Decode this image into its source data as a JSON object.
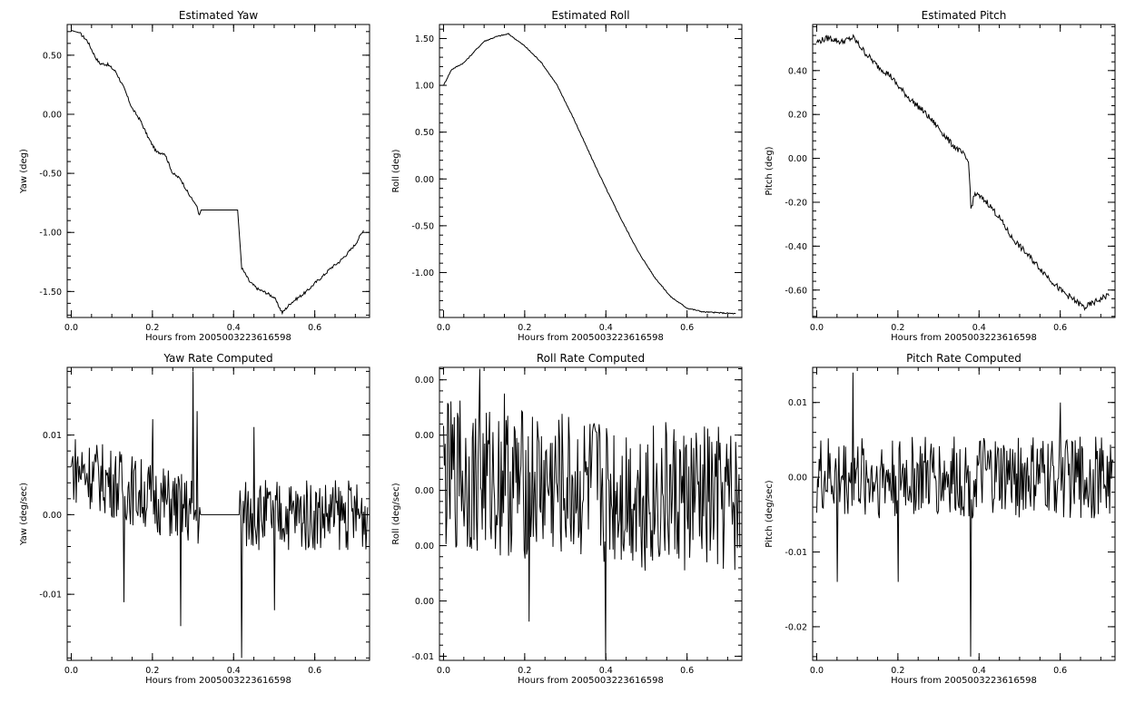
{
  "figure": {
    "background": "#ffffff",
    "line_color": "#000000"
  },
  "chart_data": [
    {
      "type": "line",
      "title": "Estimated Yaw",
      "xlabel": "Hours from 2005003223616598",
      "ylabel": "Yaw (deg)",
      "xlim": [
        -0.01,
        0.735
      ],
      "ylim": [
        -1.72,
        0.76
      ],
      "xticks": [
        0.0,
        0.2,
        0.4,
        0.6
      ],
      "xtick_labels": [
        "0.0",
        "0.2",
        "0.4",
        "0.6"
      ],
      "yticks": [
        0.5,
        0.0,
        -0.5,
        -1.0,
        -1.5
      ],
      "ytick_labels": [
        "0.50",
        "0.00",
        "-0.50",
        "-1.00",
        "-1.50"
      ],
      "grid": false,
      "series": [
        {
          "points": [
            [
              0.0,
              0.71
            ],
            [
              0.02,
              0.69
            ],
            [
              0.04,
              0.62
            ],
            [
              0.06,
              0.48
            ],
            [
              0.07,
              0.43
            ],
            [
              0.09,
              0.42
            ],
            [
              0.11,
              0.36
            ],
            [
              0.13,
              0.22
            ],
            [
              0.15,
              0.05
            ],
            [
              0.17,
              -0.05
            ],
            [
              0.19,
              -0.2
            ],
            [
              0.21,
              -0.32
            ],
            [
              0.23,
              -0.33
            ],
            [
              0.25,
              -0.5
            ],
            [
              0.27,
              -0.55
            ],
            [
              0.29,
              -0.68
            ],
            [
              0.31,
              -0.78
            ],
            [
              0.315,
              -0.86
            ],
            [
              0.32,
              -0.81
            ],
            [
              0.41,
              -0.81
            ],
            [
              0.42,
              -1.3
            ],
            [
              0.44,
              -1.42
            ],
            [
              0.46,
              -1.48
            ],
            [
              0.48,
              -1.51
            ],
            [
              0.5,
              -1.55
            ],
            [
              0.52,
              -1.68
            ],
            [
              0.54,
              -1.6
            ],
            [
              0.56,
              -1.55
            ],
            [
              0.58,
              -1.5
            ],
            [
              0.6,
              -1.43
            ],
            [
              0.62,
              -1.37
            ],
            [
              0.64,
              -1.3
            ],
            [
              0.66,
              -1.25
            ],
            [
              0.68,
              -1.18
            ],
            [
              0.7,
              -1.1
            ],
            [
              0.72,
              -0.98
            ]
          ],
          "noise": [
            [
              0.02,
              0.3,
              0.012
            ],
            [
              0.42,
              0.735,
              0.012
            ]
          ]
        }
      ]
    },
    {
      "type": "line",
      "title": "Estimated Roll",
      "xlabel": "Hours from 2005003223616598",
      "ylabel": "Roll (deg)",
      "xlim": [
        -0.01,
        0.735
      ],
      "ylim": [
        -1.48,
        1.65
      ],
      "xticks": [
        0.0,
        0.2,
        0.4,
        0.6
      ],
      "xtick_labels": [
        "0.0",
        "0.2",
        "0.4",
        "0.6"
      ],
      "yticks": [
        1.5,
        1.0,
        0.5,
        0.0,
        -0.5,
        -1.0
      ],
      "ytick_labels": [
        "1.50",
        "1.00",
        "0.50",
        "0.00",
        "-0.50",
        "-1.00"
      ],
      "grid": false,
      "series": [
        {
          "points": [
            [
              0.0,
              1.0
            ],
            [
              0.02,
              1.17
            ],
            [
              0.05,
              1.24
            ],
            [
              0.08,
              1.38
            ],
            [
              0.1,
              1.47
            ],
            [
              0.13,
              1.52
            ],
            [
              0.16,
              1.55
            ],
            [
              0.2,
              1.42
            ],
            [
              0.24,
              1.25
            ],
            [
              0.28,
              1.0
            ],
            [
              0.32,
              0.65
            ],
            [
              0.36,
              0.27
            ],
            [
              0.4,
              -0.1
            ],
            [
              0.44,
              -0.45
            ],
            [
              0.48,
              -0.78
            ],
            [
              0.52,
              -1.05
            ],
            [
              0.56,
              -1.26
            ],
            [
              0.6,
              -1.38
            ],
            [
              0.64,
              -1.42
            ],
            [
              0.68,
              -1.43
            ],
            [
              0.72,
              -1.44
            ]
          ],
          "noise": [
            [
              0.0,
              0.72,
              0.006
            ]
          ]
        }
      ]
    },
    {
      "type": "line",
      "title": "Estimated Pitch",
      "xlabel": "Hours from 2005003223616598",
      "ylabel": "Pitch (deg)",
      "xlim": [
        -0.01,
        0.735
      ],
      "ylim": [
        -0.725,
        0.61
      ],
      "xticks": [
        0.0,
        0.2,
        0.4,
        0.6
      ],
      "xtick_labels": [
        "0.0",
        "0.2",
        "0.4",
        "0.6"
      ],
      "yticks": [
        0.4,
        0.2,
        0.0,
        -0.2,
        -0.4,
        -0.6
      ],
      "ytick_labels": [
        "0.40",
        "0.20",
        "0.00",
        "-0.20",
        "-0.40",
        "-0.60"
      ],
      "grid": false,
      "series": [
        {
          "points": [
            [
              0.0,
              0.53
            ],
            [
              0.03,
              0.55
            ],
            [
              0.06,
              0.53
            ],
            [
              0.09,
              0.55
            ],
            [
              0.12,
              0.48
            ],
            [
              0.15,
              0.42
            ],
            [
              0.18,
              0.38
            ],
            [
              0.2,
              0.33
            ],
            [
              0.23,
              0.27
            ],
            [
              0.26,
              0.22
            ],
            [
              0.3,
              0.14
            ],
            [
              0.33,
              0.07
            ],
            [
              0.36,
              0.02
            ],
            [
              0.375,
              -0.02
            ],
            [
              0.38,
              -0.23
            ],
            [
              0.39,
              -0.16
            ],
            [
              0.42,
              -0.2
            ],
            [
              0.45,
              -0.27
            ],
            [
              0.48,
              -0.36
            ],
            [
              0.51,
              -0.42
            ],
            [
              0.54,
              -0.48
            ],
            [
              0.57,
              -0.54
            ],
            [
              0.6,
              -0.6
            ],
            [
              0.63,
              -0.64
            ],
            [
              0.66,
              -0.68
            ],
            [
              0.69,
              -0.65
            ],
            [
              0.72,
              -0.62
            ]
          ],
          "noise": [
            [
              0.0,
              0.735,
              0.014
            ]
          ]
        }
      ]
    },
    {
      "type": "line",
      "title": "Yaw Rate Computed",
      "xlabel": "Hours from 2005003223616598",
      "ylabel": "Yaw (deg/sec)",
      "xlim": [
        -0.01,
        0.735
      ],
      "ylim": [
        -0.0183,
        0.0185
      ],
      "xticks": [
        0.0,
        0.2,
        0.4,
        0.6
      ],
      "xtick_labels": [
        "0.0",
        "0.2",
        "0.4",
        "0.6"
      ],
      "yticks": [
        0.01,
        0.0,
        -0.01
      ],
      "ytick_labels": [
        "0.01",
        "0.00",
        "-0.01"
      ],
      "grid": false,
      "series": [
        {
          "points": [
            [
              0.0,
              0.006
            ],
            [
              0.32,
              0.0
            ],
            [
              0.41,
              0.0
            ],
            [
              0.73,
              0.0
            ]
          ],
          "noise": [
            [
              0.002,
              0.318,
              0.0045
            ],
            [
              0.415,
              0.73,
              0.0045
            ]
          ],
          "spikes": [
            [
              0.2,
              0.012
            ],
            [
              0.3,
              0.018
            ],
            [
              0.31,
              0.013
            ],
            [
              0.27,
              -0.014
            ],
            [
              0.13,
              -0.011
            ],
            [
              0.42,
              -0.018
            ],
            [
              0.45,
              0.011
            ],
            [
              0.5,
              -0.012
            ]
          ]
        }
      ]
    },
    {
      "type": "line",
      "title": "Roll Rate Computed",
      "xlabel": "Hours from 2005003223616598",
      "ylabel": "Roll (deg/sec)",
      "xlim": [
        -0.01,
        0.735
      ],
      "ylim": [
        -0.0123,
        0.0089
      ],
      "xticks": [
        0.0,
        0.2,
        0.4,
        0.6
      ],
      "xtick_labels": [
        "0.0",
        "0.2",
        "0.4",
        "0.6"
      ],
      "yticks": [
        0.008,
        0.004,
        0.0,
        -0.004,
        -0.008
      ],
      "ytick_labels": [
        "0.00",
        "0.00",
        "0.00",
        "0.00",
        "0.00"
      ],
      "extra_yticks": [
        -0.012
      ],
      "extra_ytick_labels": [
        "-0.01"
      ],
      "grid": false,
      "series": [
        {
          "points": [
            [
              0.0,
              0.001
            ],
            [
              0.73,
              -0.001
            ]
          ],
          "noise": [
            [
              0.0,
              0.73,
              0.0055
            ]
          ],
          "spikes": [
            [
              0.09,
              0.0088
            ],
            [
              0.04,
              0.0065
            ],
            [
              0.4,
              -0.0122
            ],
            [
              0.21,
              -0.0095
            ],
            [
              0.15,
              0.007
            ]
          ]
        }
      ]
    },
    {
      "type": "line",
      "title": "Pitch Rate Computed",
      "xlabel": "Hours from 2005003223616598",
      "ylabel": "Pitch (deg/sec)",
      "xlim": [
        -0.01,
        0.735
      ],
      "ylim": [
        -0.0245,
        0.0147
      ],
      "xticks": [
        0.0,
        0.2,
        0.4,
        0.6
      ],
      "xtick_labels": [
        "0.0",
        "0.2",
        "0.4",
        "0.6"
      ],
      "yticks": [
        0.01,
        0.0,
        -0.01,
        -0.02
      ],
      "ytick_labels": [
        "0.01",
        "0.00",
        "-0.01",
        "-0.02"
      ],
      "grid": false,
      "series": [
        {
          "points": [
            [
              0.0,
              0.0
            ],
            [
              0.73,
              0.0
            ]
          ],
          "noise": [
            [
              0.0,
              0.73,
              0.0055
            ]
          ],
          "spikes": [
            [
              0.09,
              0.014
            ],
            [
              0.05,
              -0.014
            ],
            [
              0.2,
              -0.014
            ],
            [
              0.38,
              -0.024
            ],
            [
              0.6,
              0.01
            ]
          ]
        }
      ]
    }
  ]
}
